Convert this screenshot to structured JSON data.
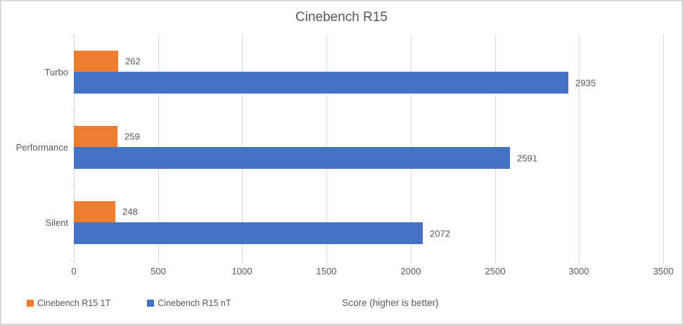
{
  "chart_data": {
    "type": "bar",
    "orientation": "horizontal",
    "title": "Cinebench R15",
    "xlabel": "Score (higher is better)",
    "categories": [
      "Turbo",
      "Performance",
      "Silent"
    ],
    "series": [
      {
        "name": "Cinebench R15 1T",
        "color": "#ED7D31",
        "values": [
          262,
          259,
          248
        ]
      },
      {
        "name": "Cinebench R15 nT",
        "color": "#4472C4",
        "values": [
          2935,
          2591,
          2072
        ]
      }
    ],
    "xlim": [
      0,
      3500
    ],
    "x_ticks": [
      0,
      500,
      1000,
      1500,
      2000,
      2500,
      3000,
      3500
    ],
    "grid": true,
    "data_labels": true,
    "legend_position": "bottom-left",
    "colors": {
      "text": "#595959",
      "gridline": "#D9D9D9",
      "border": "#D9D9D9",
      "background": "#FFFFFF"
    }
  }
}
